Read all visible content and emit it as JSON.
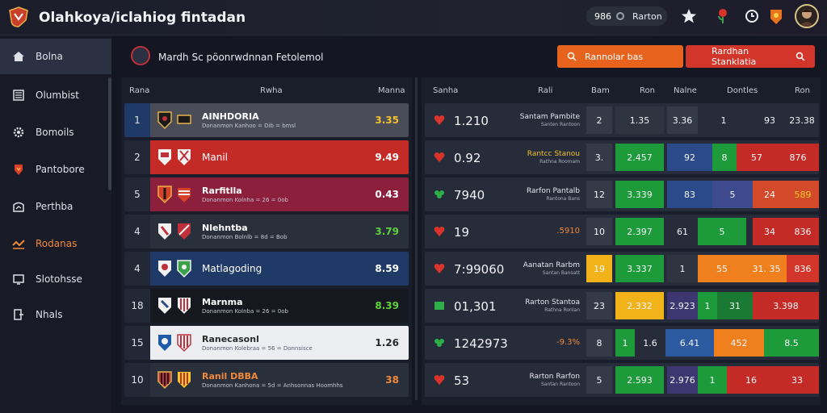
{
  "app": {
    "title": "Olahkoya/iclahiog fintadan"
  },
  "topbar": {
    "balance": "986",
    "user": "Rarton"
  },
  "sidebar": {
    "items": [
      {
        "label": "Bolna",
        "icon": "home-icon"
      },
      {
        "label": "Olumbist",
        "icon": "list-icon"
      },
      {
        "label": "Bomoils",
        "icon": "gear-icon"
      },
      {
        "label": "Pantobore",
        "icon": "shield-icon"
      },
      {
        "label": "Perthba",
        "icon": "chart-icon"
      },
      {
        "label": "Rodanas",
        "icon": "wave-icon"
      },
      {
        "label": "Slotohsse",
        "icon": "monitor-icon"
      },
      {
        "label": "Nhals",
        "icon": "door-icon"
      }
    ]
  },
  "panel": {
    "title": "Mardh Sc pöonrwdnnan Fetolemol",
    "search_label": "Rannolar bas",
    "filter_label": "Rardhan Stanklatia"
  },
  "left_table": {
    "headers": [
      "Rana",
      "Rwha",
      "Manna"
    ],
    "rows": [
      {
        "rank": "1",
        "team": "AINHDORIA",
        "sub": "Donanmon Kanhoo = Dib = bmsl",
        "value": "3.35"
      },
      {
        "rank": "2",
        "team": "Manil",
        "sub": "",
        "value": "9.49"
      },
      {
        "rank": "5",
        "team": "Rarfitlla",
        "sub": "Donanmon Kolnha = 26 = 0ob",
        "value": "0.43"
      },
      {
        "rank": "4",
        "team": "Nlehntba",
        "sub": "Donanmon Bolnlb = 8d = Bob",
        "value": "3.79"
      },
      {
        "rank": "4",
        "team": "Matlagoding",
        "sub": "",
        "value": "8.59"
      },
      {
        "rank": "18",
        "team": "Marnma",
        "sub": "Donanmon Kolnba = 26 = 0ob",
        "value": "8.39"
      },
      {
        "rank": "15",
        "team": "Ranecasonl",
        "sub": "Donanmon Kolebraa = 56 = Donnsisce",
        "value": "1.26"
      },
      {
        "rank": "10",
        "team": "Ranil DBBA",
        "sub": "Donanmon Kanhona = 5d = Anhsonnas Hoomhhs",
        "value": "38"
      }
    ]
  },
  "right_table": {
    "headers": [
      "Sanha",
      "Rali",
      "Bam",
      "Ron",
      "Nalne",
      "Dontles",
      "Ron"
    ],
    "rows": [
      {
        "icon": "heart-icon",
        "big": "1.210",
        "name": "Santam Pambite",
        "name2": "Santen Rantoon",
        "cells": [
          "2",
          "1.35",
          "3.36",
          "1",
          "93",
          "23.38"
        ]
      },
      {
        "icon": "heart-icon",
        "big": "0.92",
        "name": "Rantcc Stanou",
        "name2": "Rathna Roomam",
        "cells": [
          "3.",
          "2.457",
          "92",
          "8",
          "57",
          "876"
        ]
      },
      {
        "icon": "clover-icon",
        "big": "7940",
        "name": "Rarfon Pantalb",
        "name2": "Rantona Bans",
        "cells": [
          "12",
          "3.339",
          "83",
          "5",
          "24",
          "589"
        ]
      },
      {
        "icon": "heart-icon",
        "big": "19",
        "name": "",
        "name2": ".5910",
        "cells": [
          "10",
          "2.397",
          "61",
          "5",
          "34",
          "836"
        ]
      },
      {
        "icon": "heart-icon",
        "big": "7:99060",
        "name": "Aanatan Rarbm",
        "name2": "Santan Bansatt",
        "cells": [
          "19",
          "3.337",
          "1",
          "55",
          "31. 35",
          "836"
        ]
      },
      {
        "icon": "square-icon",
        "big": "01,301",
        "name": "Rarton Stantoa",
        "name2": "Rathna Ronlan",
        "cells": [
          "23",
          "2.332",
          "2.923",
          "1",
          "31",
          "3.398"
        ]
      },
      {
        "icon": "clover-icon",
        "big": "1242973",
        "name": "",
        "name2": "-9.3%",
        "cells": [
          "8",
          "1",
          "1.6",
          "6.41",
          "452",
          "8.5"
        ]
      },
      {
        "icon": "heart-icon",
        "big": "53",
        "name": "Rarton Rarfon",
        "name2": "Santan Rantoon",
        "cells": [
          "5",
          "2.593",
          "2.976",
          "1",
          "16",
          "33"
        ]
      }
    ]
  },
  "colors": {
    "accent": "#e8641e",
    "danger": "#d2352a",
    "green": "#1d9a3a",
    "orange": "#f0801e",
    "purple": "#3e3670",
    "blue": "#2b4a8a"
  }
}
